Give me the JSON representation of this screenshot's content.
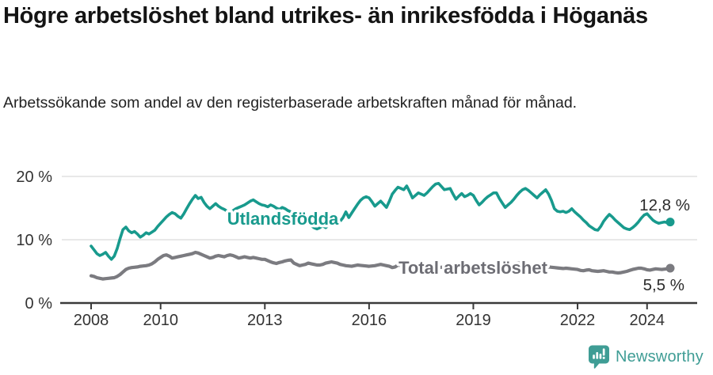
{
  "header": {
    "title": "Högre arbetslöshet bland utrikes- än inrikesfödda i Höganäs",
    "subtitle": "Arbetssökande som andel av den registerbaserade arbetskraften månad för månad."
  },
  "footer": {
    "brand": "Newsworthy",
    "brand_color": "#3f9d95",
    "logo_icon": "bar-chart-speech-bubble-icon"
  },
  "chart_data": {
    "type": "line",
    "unit": "percent",
    "x_start_month": "2008-01",
    "x_end_month": "2024-09",
    "ylim": [
      0,
      20
    ],
    "grid": "horizontal",
    "axis_color": "#3a3a3a",
    "gridline_color": "#d9d9d9",
    "tick_label_color": "#333333",
    "annotation_color": "#2b2b2b",
    "y_ticks": [
      {
        "label": "0 %",
        "value": 0
      },
      {
        "label": "10 %",
        "value": 10
      },
      {
        "label": "20 %",
        "value": 20
      }
    ],
    "x_ticks": [
      {
        "label": "2008",
        "year": 2008
      },
      {
        "label": "2010",
        "year": 2010
      },
      {
        "label": "2013",
        "year": 2013
      },
      {
        "label": "2016",
        "year": 2016
      },
      {
        "label": "2019",
        "year": 2019
      },
      {
        "label": "2022",
        "year": 2022
      },
      {
        "label": "2024",
        "year": 2024
      }
    ],
    "series": [
      {
        "name": "Utlandsfödda",
        "slug": "utlandsfodda",
        "color": "#189a8d",
        "label_color": "#189a8d",
        "end_label": "12,8 %",
        "end_value": 12.8,
        "values": [
          9.0,
          8.4,
          7.8,
          7.5,
          7.7,
          8.0,
          7.4,
          6.9,
          7.4,
          8.6,
          10.2,
          11.6,
          12.0,
          11.4,
          11.1,
          11.3,
          10.9,
          10.4,
          10.7,
          11.1,
          10.9,
          11.2,
          11.5,
          12.1,
          12.6,
          13.1,
          13.6,
          14.0,
          14.3,
          14.1,
          13.7,
          13.4,
          14.1,
          14.9,
          15.7,
          16.4,
          17.0,
          16.5,
          16.7,
          15.9,
          15.3,
          14.9,
          15.3,
          15.7,
          15.3,
          15.0,
          14.8,
          14.5,
          14.3,
          14.6,
          14.9,
          15.1,
          15.3,
          15.5,
          15.8,
          16.1,
          16.3,
          16.0,
          15.7,
          15.5,
          15.4,
          15.2,
          15.5,
          15.3,
          15.0,
          14.8,
          15.1,
          14.9,
          14.6,
          14.4,
          14.2,
          14.0,
          13.8,
          13.4,
          13.0,
          12.6,
          12.2,
          11.9,
          11.7,
          11.9,
          12.2,
          11.9,
          12.3,
          12.7,
          13.1,
          13.6,
          12.9,
          13.5,
          14.4,
          13.5,
          14.2,
          14.9,
          15.6,
          16.2,
          16.6,
          16.8,
          16.6,
          16.0,
          15.3,
          15.7,
          16.1,
          15.6,
          15.1,
          16.1,
          17.2,
          17.8,
          18.3,
          18.1,
          17.9,
          18.5,
          17.6,
          16.6,
          17.0,
          17.4,
          17.2,
          17.0,
          17.4,
          17.9,
          18.4,
          18.8,
          18.9,
          18.4,
          17.9,
          18.0,
          18.1,
          17.2,
          16.4,
          16.9,
          17.3,
          16.8,
          17.0,
          17.3,
          17.0,
          16.2,
          15.5,
          15.9,
          16.4,
          16.8,
          17.1,
          17.4,
          17.4,
          16.5,
          15.8,
          15.1,
          15.5,
          15.9,
          16.4,
          17.0,
          17.5,
          17.9,
          18.1,
          17.8,
          17.4,
          17.0,
          16.6,
          17.1,
          17.5,
          17.9,
          17.2,
          16.2,
          14.9,
          14.5,
          14.4,
          14.5,
          14.3,
          14.5,
          14.9,
          14.4,
          14.0,
          13.6,
          13.1,
          12.7,
          12.2,
          11.9,
          11.6,
          11.5,
          12.1,
          12.9,
          13.5,
          14.0,
          13.6,
          13.1,
          12.7,
          12.3,
          11.9,
          11.7,
          11.6,
          11.9,
          12.3,
          12.8,
          13.4,
          13.9,
          14.1,
          13.6,
          13.1,
          12.8,
          12.6,
          12.7,
          12.8,
          12.7,
          12.8
        ]
      },
      {
        "name": "Total arbetslöshet",
        "slug": "total-arbetsloshet",
        "color": "#7b7b80",
        "label_color": "#6d6d74",
        "end_label": "5,5 %",
        "end_value": 5.5,
        "values": [
          4.3,
          4.2,
          4.0,
          3.9,
          3.8,
          3.85,
          3.9,
          3.95,
          4.0,
          4.2,
          4.5,
          4.9,
          5.3,
          5.5,
          5.6,
          5.65,
          5.7,
          5.8,
          5.85,
          5.9,
          6.0,
          6.2,
          6.5,
          6.9,
          7.2,
          7.5,
          7.6,
          7.4,
          7.1,
          7.2,
          7.3,
          7.4,
          7.5,
          7.6,
          7.7,
          7.8,
          8.0,
          7.9,
          7.7,
          7.5,
          7.3,
          7.1,
          7.2,
          7.4,
          7.5,
          7.4,
          7.3,
          7.5,
          7.6,
          7.5,
          7.3,
          7.1,
          7.2,
          7.3,
          7.2,
          7.1,
          7.2,
          7.1,
          7.0,
          6.9,
          6.9,
          6.7,
          6.5,
          6.35,
          6.25,
          6.4,
          6.5,
          6.65,
          6.75,
          6.8,
          6.3,
          6.1,
          5.9,
          6.0,
          6.1,
          6.3,
          6.2,
          6.1,
          6.0,
          6.0,
          6.1,
          6.3,
          6.4,
          6.5,
          6.4,
          6.3,
          6.1,
          6.0,
          5.9,
          5.85,
          5.8,
          5.9,
          6.0,
          5.95,
          5.9,
          5.85,
          5.8,
          5.85,
          5.9,
          6.0,
          6.1,
          6.0,
          5.9,
          5.8,
          5.6,
          5.7,
          6.0,
          5.95,
          5.9,
          5.8,
          5.7,
          5.75,
          5.8,
          5.75,
          5.7,
          5.65,
          5.7,
          5.75,
          5.7,
          5.65,
          5.6,
          5.65,
          5.7,
          5.6,
          5.55,
          5.6,
          5.65,
          5.6,
          5.55,
          5.5,
          5.55,
          5.6,
          5.6,
          5.65,
          5.7,
          5.65,
          5.6,
          5.65,
          5.7,
          5.75,
          5.7,
          5.65,
          5.7,
          5.8,
          5.9,
          6.0,
          6.1,
          6.3,
          6.3,
          6.2,
          6.15,
          6.1,
          6.0,
          5.95,
          5.9,
          5.85,
          5.8,
          5.75,
          5.7,
          5.65,
          5.6,
          5.55,
          5.5,
          5.45,
          5.5,
          5.45,
          5.4,
          5.35,
          5.3,
          5.15,
          5.1,
          5.2,
          5.25,
          5.1,
          5.05,
          5.0,
          5.05,
          5.1,
          5.0,
          4.9,
          4.9,
          4.8,
          4.75,
          4.8,
          4.9,
          5.0,
          5.15,
          5.3,
          5.4,
          5.5,
          5.5,
          5.4,
          5.25,
          5.2,
          5.3,
          5.4,
          5.35,
          5.3,
          5.35,
          5.4,
          5.5
        ]
      }
    ]
  }
}
